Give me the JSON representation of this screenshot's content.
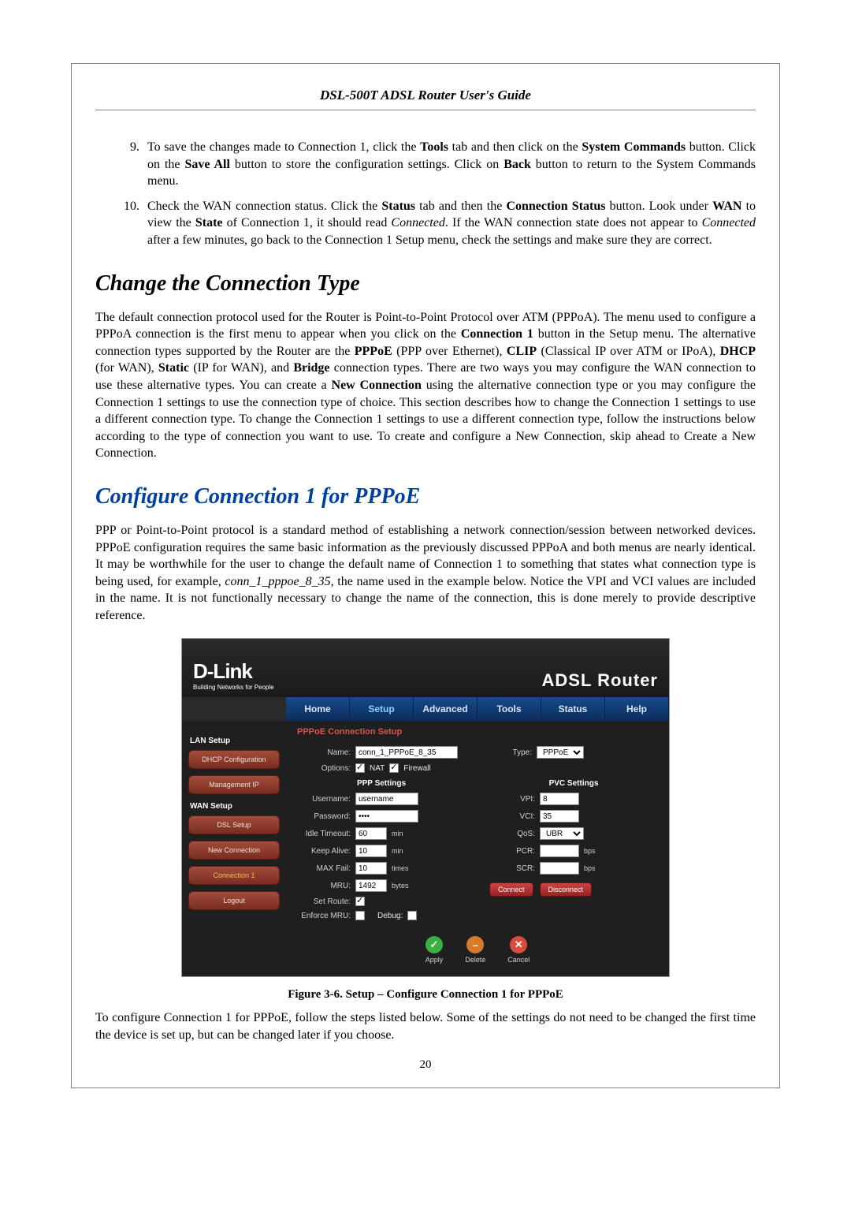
{
  "header": {
    "title": "DSL-500T ADSL Router User's Guide"
  },
  "steps": {
    "start": 9,
    "items": [
      "To save the changes made to Connection 1, click the <b>Tools</b> tab and then click on the <b>System Commands</b> button. Click on the <b>Save All</b> button to store the configuration settings. Click on <b>Back</b> button to return to the System Commands menu.",
      "Check the WAN connection status. Click the <b>Status</b> tab and then the <b>Connection Status</b> button. Look under <b>WAN</b> to view the <b>State</b> of Connection 1, it should read <i>Connected</i>. If the WAN connection state does not appear to <i>Connected</i> after a few minutes, go back to the Connection 1 Setup menu, check the settings and make sure they are correct."
    ]
  },
  "section1": {
    "heading": "Change the Connection Type",
    "body": "The default connection protocol used for the Router is Point-to-Point Protocol over ATM (PPPoA). The menu used to configure a PPPoA connection is the first menu to appear when you click on the <b>Connection 1</b> button in the Setup menu. The alternative connection types supported by the Router are the <b>PPPoE</b> (PPP over Ethernet), <b>CLIP</b> (Classical IP over ATM or IPoA), <b>DHCP</b> (for WAN), <b>Static</b> (IP for WAN), and <b>Bridge</b> connection types. There are two ways you may configure the WAN connection to use these alternative types. You can create a <b>New Connection</b> using the alternative connection type or you may configure the Connection 1 settings to use the connection type of choice. This section describes how to change the Connection 1 settings to use a different connection type. To change the Connection 1 settings to use a different connection type, follow the instructions below according to the type of connection you want to use. To create and configure a New Connection, skip ahead to Create a New Connection."
  },
  "section2": {
    "heading": "Configure Connection 1 for PPPoE",
    "body": "PPP or Point-to-Point protocol is a standard method of establishing a network connection/session between networked devices. PPPoE configuration requires the same basic information as the previously discussed PPPoA and both menus are nearly identical. It may be worthwhile for the user to change the default name of Connection 1 to something that states what connection type is being used, for example, <i>conn_1_pppoe_8_35</i>, the name used in the example below. Notice the VPI and VCI values are included in the name. It is not functionally necessary to change the name of the connection, this is done merely to provide descriptive reference."
  },
  "figure": {
    "brand": {
      "main": "D-Link",
      "sub": "Building Networks for People"
    },
    "router_title": "ADSL Router",
    "tabs": [
      "Home",
      "Setup",
      "Advanced",
      "Tools",
      "Status",
      "Help"
    ],
    "selected_tab": "Setup",
    "side": {
      "lan_heading": "LAN Setup",
      "lan_items": [
        "DHCP Configuration",
        "Management IP"
      ],
      "wan_heading": "WAN Setup",
      "wan_items": [
        "DSL Setup",
        "New Connection",
        "Connection 1",
        "Logout"
      ]
    },
    "panel": {
      "title": "PPPoE Connection Setup",
      "name_label": "Name:",
      "name_value": "conn_1_PPPoE_8_35",
      "type_label": "Type:",
      "type_value": "PPPoE",
      "options_label": "Options:",
      "nat_label": "NAT",
      "firewall_label": "Firewall",
      "ppp_heading": "PPP Settings",
      "pvc_heading": "PVC Settings",
      "ppp": {
        "username_l": "Username:",
        "username_v": "username",
        "password_l": "Password:",
        "password_v": "••••",
        "idle_l": "Idle Timeout:",
        "idle_v": "60",
        "idle_u": "min",
        "keep_l": "Keep Alive:",
        "keep_v": "10",
        "keep_u": "min",
        "max_l": "MAX Fail:",
        "max_v": "10",
        "max_u": "times",
        "mru_l": "MRU:",
        "mru_v": "1492",
        "mru_u": "bytes",
        "route_l": "Set Route:",
        "enforce_l": "Enforce MRU:",
        "debug_l": "Debug:"
      },
      "pvc": {
        "vpi_l": "VPI:",
        "vpi_v": "8",
        "vci_l": "VCI:",
        "vci_v": "35",
        "qos_l": "QoS:",
        "qos_v": "UBR",
        "pcr_l": "PCR:",
        "pcr_u": "bps",
        "scr_l": "SCR:",
        "scr_u": "bps"
      },
      "connect": "Connect",
      "disconnect": "Disconnect",
      "actions": {
        "apply": "Apply",
        "delete": "Delete",
        "cancel": "Cancel"
      },
      "action_colors": {
        "apply": "#3cb043",
        "delete": "#d97a2a",
        "cancel": "#d94b3c"
      }
    },
    "caption": "Figure 3-6. Setup – Configure Connection 1 for PPPoE"
  },
  "closing": "To configure Connection 1 for PPPoE, follow the steps listed below. Some of the settings do not need to be changed the first time the device is set up, but can be changed later if you choose.",
  "page_number": "20"
}
